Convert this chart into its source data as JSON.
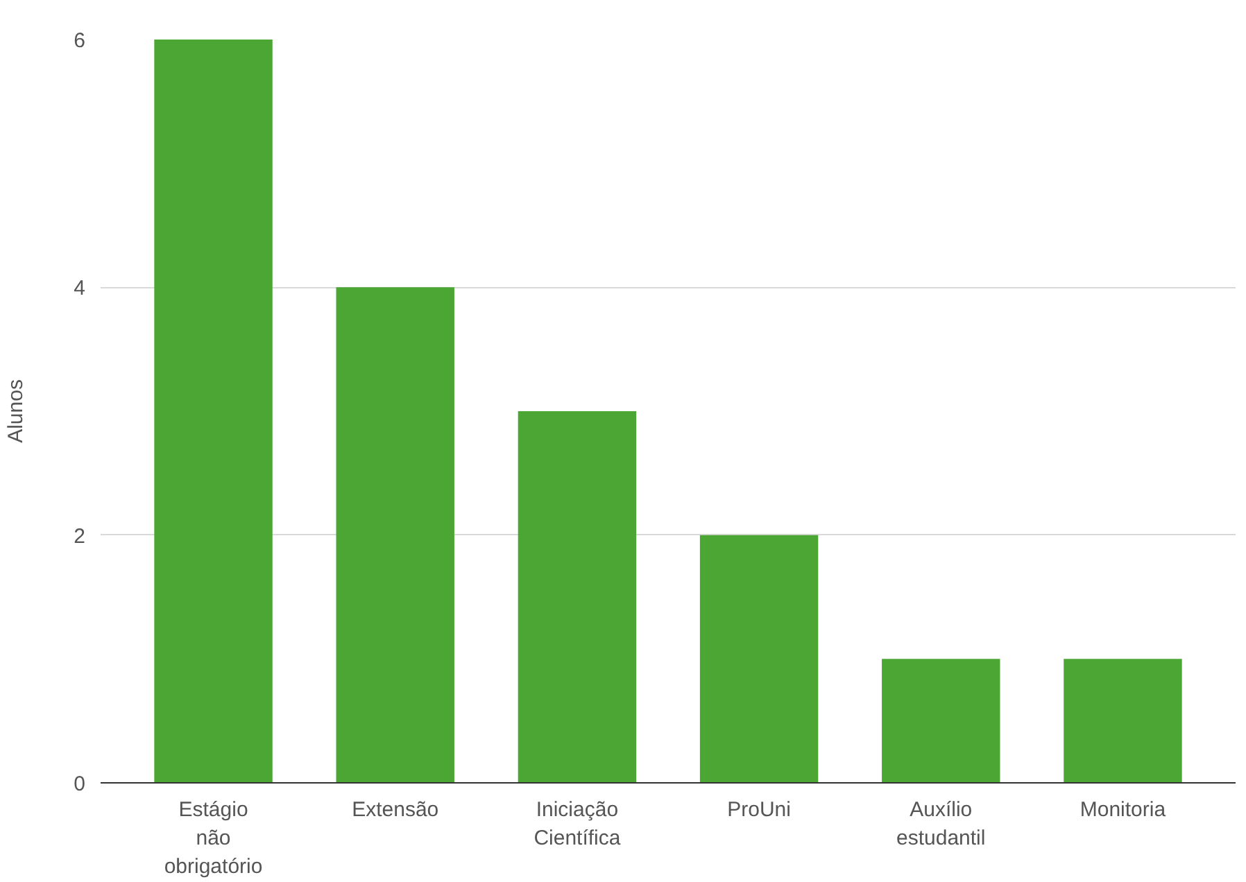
{
  "chart_data": {
    "type": "bar",
    "ylabel": "Alunos",
    "categories": [
      "Estágio não obrigatório",
      "Extensão",
      "Iniciação Científica",
      "ProUni",
      "Auxílio estudantil",
      "Monitoria"
    ],
    "values": [
      6,
      4,
      3,
      2,
      1,
      1
    ],
    "color": "#4ca634",
    "ylim": [
      0,
      6
    ],
    "yticks": [
      0,
      2,
      4,
      6
    ],
    "grid": "y"
  }
}
